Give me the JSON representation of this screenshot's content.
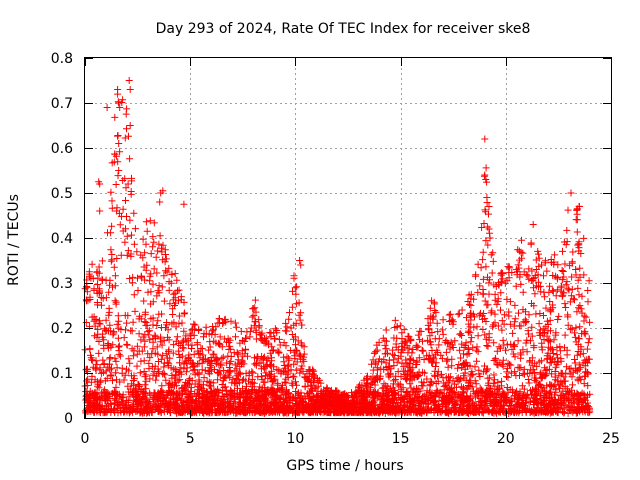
{
  "chart_data": {
    "type": "scatter",
    "title": "Day 293 of 2024, Rate Of TEC Index for receiver ske8",
    "xlabel": "GPS time / hours",
    "ylabel": "ROTI / TECUs",
    "xlim": [
      0,
      25
    ],
    "ylim": [
      0,
      0.8
    ],
    "xticks": [
      0,
      5,
      10,
      15,
      20,
      25
    ],
    "yticks": [
      0,
      0.1,
      0.2,
      0.3,
      0.4,
      0.5,
      0.6,
      0.7,
      0.8
    ],
    "grid": true,
    "marker": "+",
    "color": "#ff0000",
    "x_data_range": [
      0,
      24
    ],
    "envelope": [
      [
        0.0,
        0.38
      ],
      [
        0.5,
        0.33
      ],
      [
        1.0,
        0.36
      ],
      [
        1.5,
        0.74
      ],
      [
        2.0,
        0.75
      ],
      [
        2.5,
        0.4
      ],
      [
        3.0,
        0.46
      ],
      [
        3.5,
        0.42
      ],
      [
        4.0,
        0.35
      ],
      [
        4.5,
        0.3
      ],
      [
        5.0,
        0.22
      ],
      [
        5.5,
        0.2
      ],
      [
        6.0,
        0.21
      ],
      [
        6.5,
        0.23
      ],
      [
        7.0,
        0.22
      ],
      [
        7.5,
        0.19
      ],
      [
        8.0,
        0.26
      ],
      [
        8.5,
        0.18
      ],
      [
        9.0,
        0.2
      ],
      [
        9.5,
        0.2
      ],
      [
        10.0,
        0.35
      ],
      [
        10.5,
        0.13
      ],
      [
        11.0,
        0.1
      ],
      [
        11.5,
        0.07
      ],
      [
        12.0,
        0.06
      ],
      [
        12.5,
        0.05
      ],
      [
        13.0,
        0.07
      ],
      [
        13.5,
        0.1
      ],
      [
        14.0,
        0.19
      ],
      [
        14.5,
        0.2
      ],
      [
        15.0,
        0.24
      ],
      [
        15.5,
        0.19
      ],
      [
        16.0,
        0.2
      ],
      [
        16.5,
        0.27
      ],
      [
        17.0,
        0.24
      ],
      [
        17.5,
        0.23
      ],
      [
        18.0,
        0.26
      ],
      [
        18.5,
        0.29
      ],
      [
        19.0,
        0.62
      ],
      [
        19.5,
        0.31
      ],
      [
        20.0,
        0.34
      ],
      [
        20.5,
        0.37
      ],
      [
        21.0,
        0.43
      ],
      [
        21.5,
        0.4
      ],
      [
        22.0,
        0.34
      ],
      [
        22.5,
        0.38
      ],
      [
        23.0,
        0.5
      ],
      [
        23.5,
        0.47
      ],
      [
        24.0,
        0.3
      ]
    ],
    "outliers": [
      [
        1.05,
        0.69
      ],
      [
        1.55,
        0.73
      ],
      [
        1.6,
        0.7
      ],
      [
        1.65,
        0.69
      ],
      [
        1.6,
        0.61
      ],
      [
        1.6,
        0.55
      ],
      [
        2.1,
        0.75
      ],
      [
        2.15,
        0.73
      ],
      [
        2.15,
        0.65
      ],
      [
        2.05,
        0.52
      ],
      [
        0.65,
        0.525
      ],
      [
        0.7,
        0.52
      ],
      [
        0.7,
        0.46
      ],
      [
        1.5,
        0.46
      ],
      [
        3.6,
        0.5
      ],
      [
        3.55,
        0.48
      ],
      [
        3.7,
        0.505
      ],
      [
        4.7,
        0.475
      ],
      [
        19.0,
        0.62
      ],
      [
        19.0,
        0.54
      ],
      [
        19.05,
        0.53
      ],
      [
        19.1,
        0.49
      ],
      [
        19.2,
        0.47
      ],
      [
        19.2,
        0.42
      ],
      [
        19.25,
        0.4
      ],
      [
        8.1,
        0.262
      ],
      [
        10.2,
        0.35
      ],
      [
        10.25,
        0.34
      ],
      [
        23.1,
        0.5
      ],
      [
        23.5,
        0.47
      ],
      [
        23.4,
        0.465
      ],
      [
        21.3,
        0.43
      ]
    ]
  }
}
